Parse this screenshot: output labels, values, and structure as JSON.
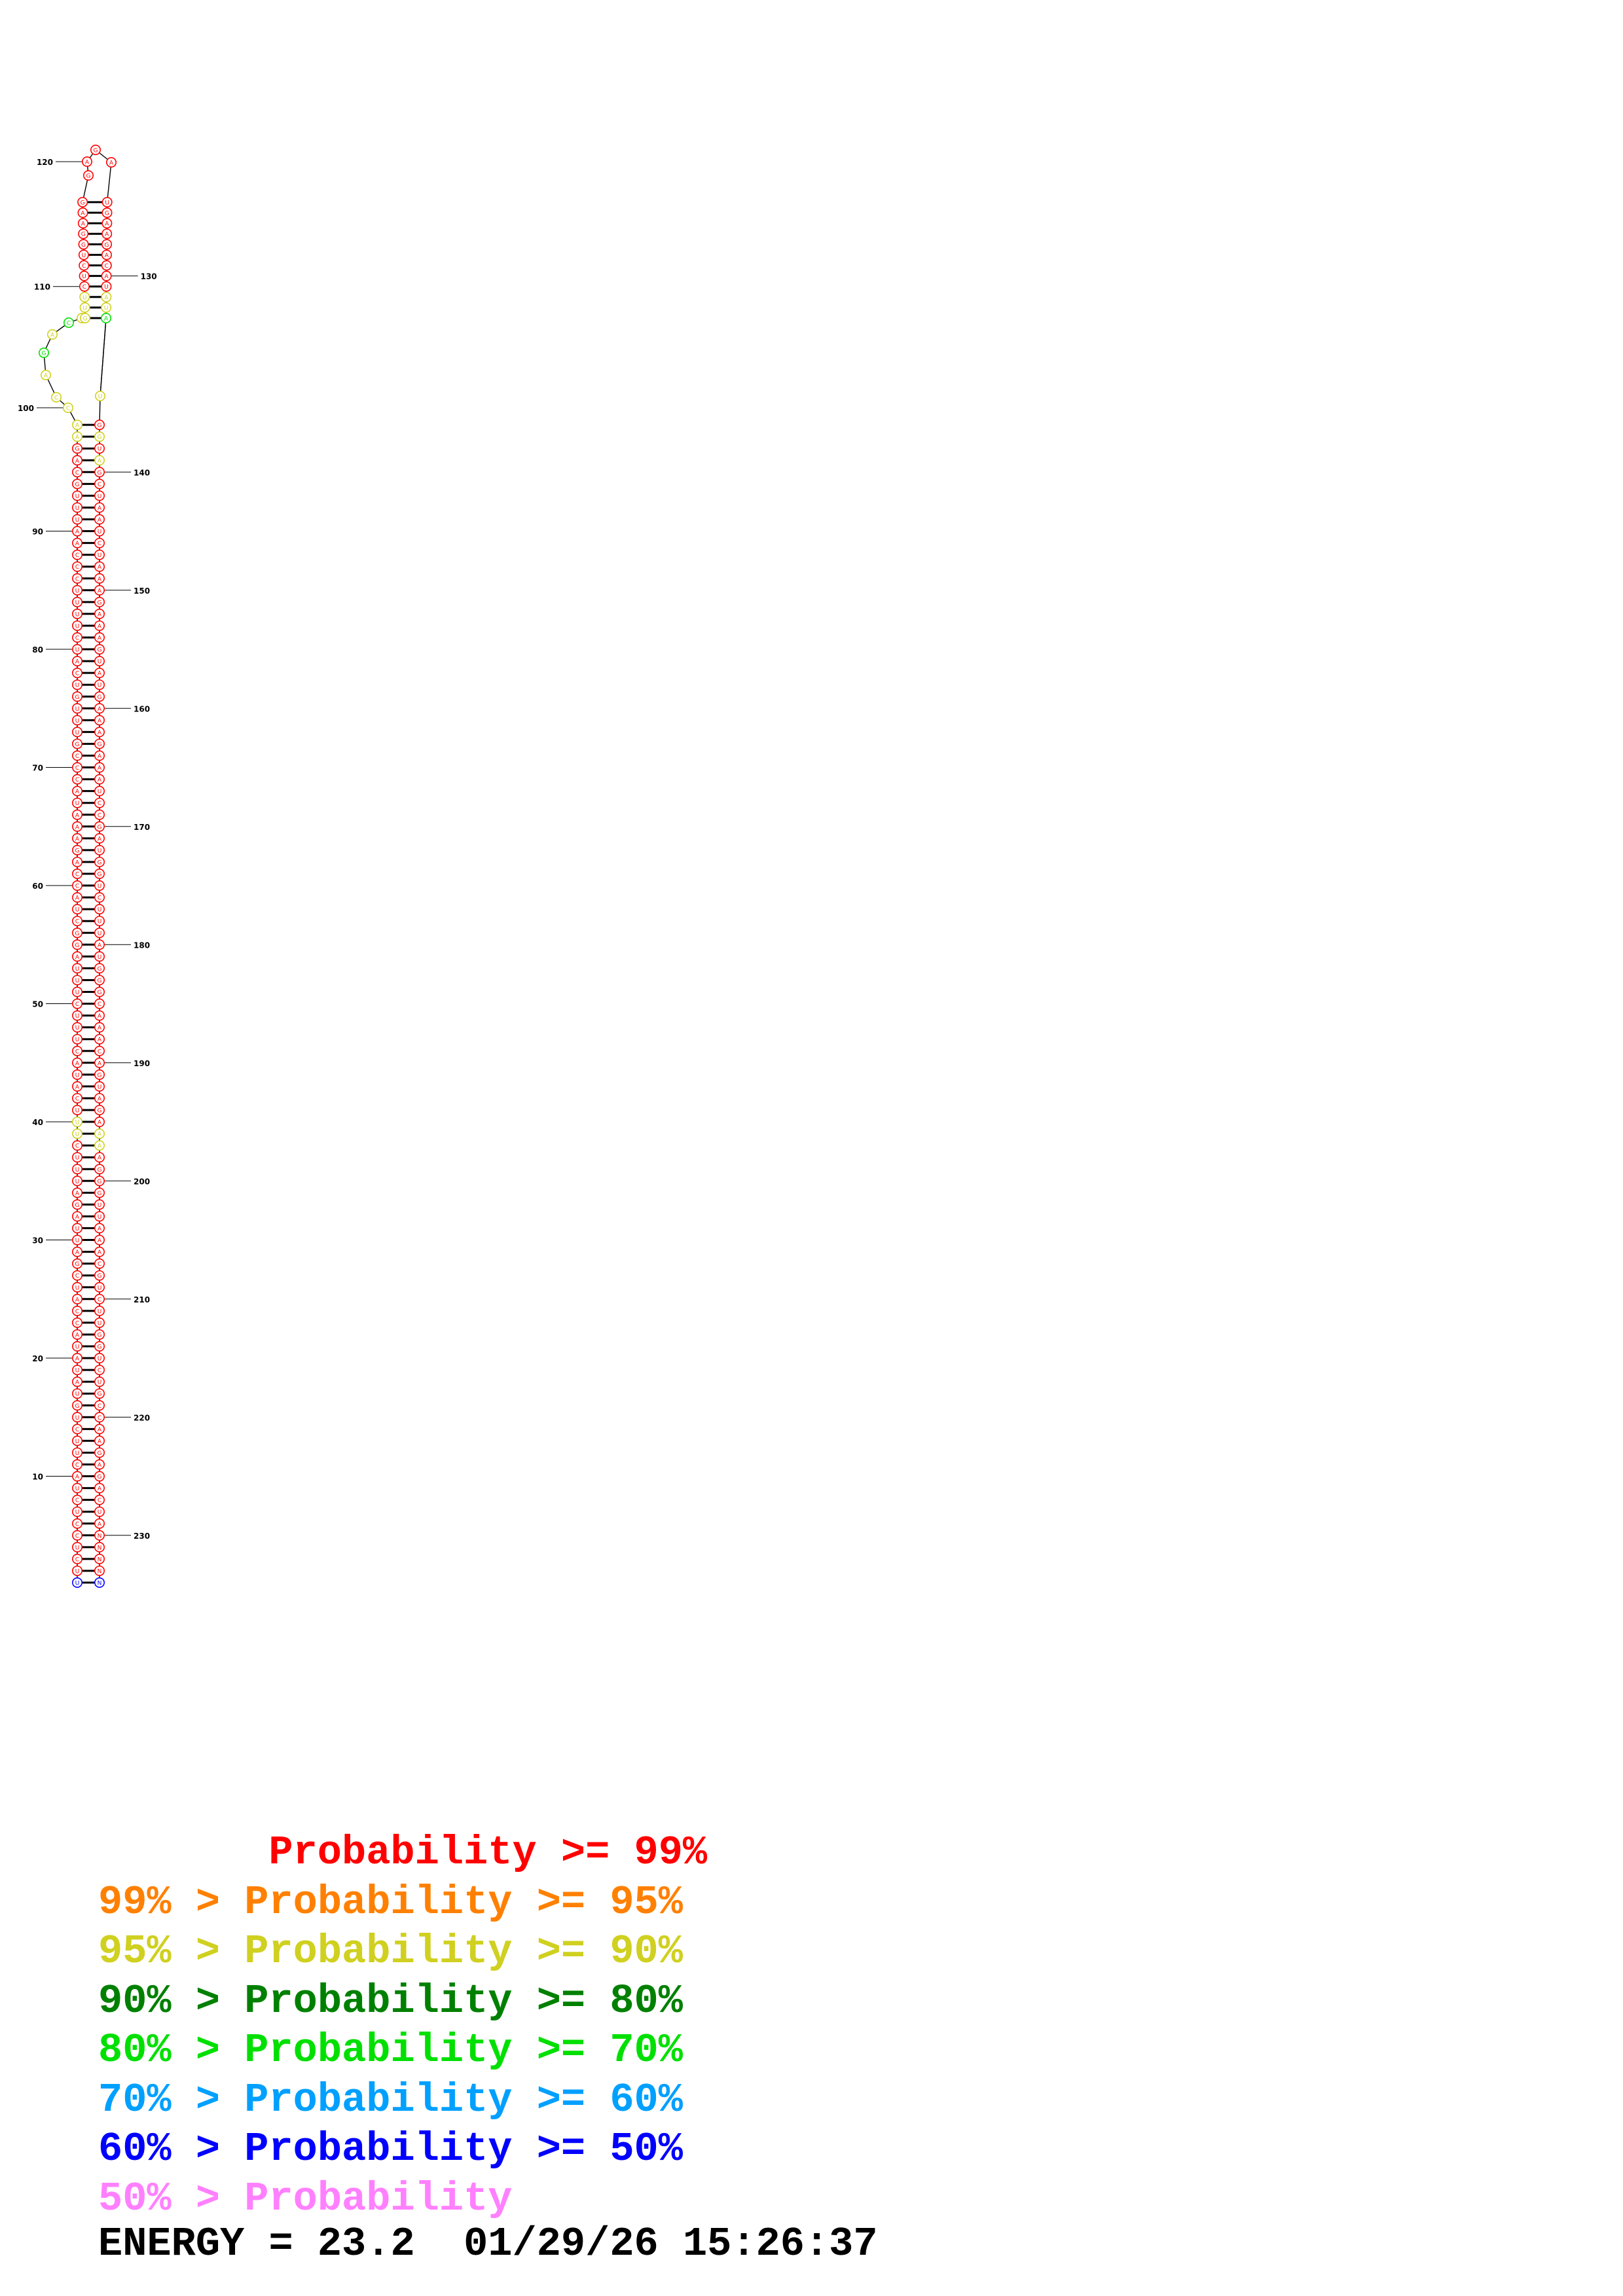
{
  "structure": {
    "length": 234,
    "position_labels": [
      "10",
      "20",
      "30",
      "40",
      "50",
      "60",
      "70",
      "80",
      "90",
      "100",
      "110",
      "120",
      "130",
      "140",
      "150",
      "160",
      "170",
      "180",
      "190",
      "200",
      "210",
      "220",
      "230"
    ],
    "bases_5p": "UUCUCCUCUACUUCUGUAUAUACCAUCGAUUAGAUUUCUUUCAUACUUUCUUUAGGCUACCAGAAAUACCCGUUUGUCAUCUUUUCCCAAUUUGCAGAACCAGACGGUUCUCUG",
    "bases_3p": "GAAGGAGAUGAAGACAUAUAUGGUAGCUAAUCUAAAGAAAGUAUGAAAGAAAUCCGAUGGUCUUUAUGGGCAAACAGUAGAAAAGGGUUAAACGUCUUGGUCUGCCAAGAGACUA",
    "colors": {
      "p99": "#ff0000",
      "p95": "#ff8000",
      "p90": "#d0d020",
      "p80": "#008000",
      "p70": "#00e000",
      "p60": "#00a0ff",
      "p50": "#0000ff",
      "plow": "#ff80ff"
    },
    "low_prob_positions": [
      1,
      234
    ],
    "mid_prob_positions": [
      39,
      40,
      98,
      99,
      100,
      101,
      102,
      103,
      104,
      105,
      106,
      107,
      108,
      109,
      132,
      133,
      135,
      137,
      139,
      196,
      197
    ]
  },
  "legend": [
    {
      "prefix": "       ",
      "text": "Probability >= 99%",
      "color": "#ff0000"
    },
    {
      "prefix": "",
      "text": "99% > Probability >= 95%",
      "color": "#ff8000"
    },
    {
      "prefix": "",
      "text": "95% > Probability >= 90%",
      "color": "#d0d020"
    },
    {
      "prefix": "",
      "text": "90% > Probability >= 80%",
      "color": "#008000"
    },
    {
      "prefix": "",
      "text": "80% > Probability >= 70%",
      "color": "#00e000"
    },
    {
      "prefix": "",
      "text": "70% > Probability >= 60%",
      "color": "#00a0ff"
    },
    {
      "prefix": "",
      "text": "60% > Probability >= 50%",
      "color": "#0000ff"
    },
    {
      "prefix": "",
      "text": "50% > Probability",
      "color": "#ff80ff"
    }
  ],
  "energy_line": "ENERGY = 23.2  01/29/26 15:26:37"
}
